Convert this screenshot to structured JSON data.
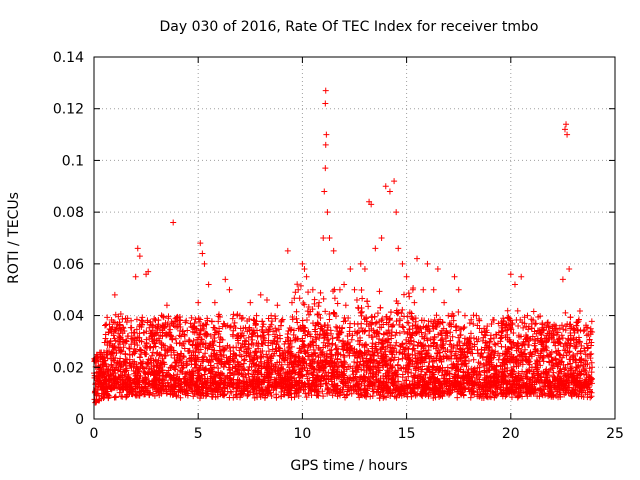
{
  "chart_data": {
    "type": "scatter",
    "title": "Day 030 of 2016, Rate Of TEC Index for receiver tmbo",
    "xlabel": "GPS time / hours",
    "ylabel": "ROTI / TECUs",
    "xlim": [
      0,
      25
    ],
    "ylim": [
      0,
      0.14
    ],
    "x_ticks": [
      0,
      5,
      10,
      15,
      20,
      25
    ],
    "x_tick_labels": [
      "0",
      "5",
      "10",
      "15",
      "20",
      "25"
    ],
    "y_ticks": [
      0,
      0.02,
      0.04,
      0.06,
      0.08,
      0.1,
      0.12,
      0.14
    ],
    "y_tick_labels": [
      "0",
      "0.02",
      "0.04",
      "0.06",
      "0.08",
      "0.1",
      "0.12",
      "0.14"
    ],
    "grid": true,
    "marker": "+",
    "marker_color": "#ff0000",
    "series": [
      {
        "name": "ROTI",
        "description_points": "dense band approx 0.005-0.04 across 0-24h",
        "points": [
          [
            0.1,
            0.012
          ],
          [
            0.3,
            0.02
          ],
          [
            0.5,
            0.016
          ],
          [
            0.8,
            0.03
          ],
          [
            1.0,
            0.048
          ],
          [
            1.2,
            0.035
          ],
          [
            1.5,
            0.025
          ],
          [
            1.8,
            0.02
          ],
          [
            2.0,
            0.055
          ],
          [
            2.1,
            0.066
          ],
          [
            2.2,
            0.063
          ],
          [
            2.5,
            0.056
          ],
          [
            2.6,
            0.057
          ],
          [
            2.8,
            0.03
          ],
          [
            3.0,
            0.02
          ],
          [
            3.3,
            0.018
          ],
          [
            3.5,
            0.044
          ],
          [
            3.8,
            0.076
          ],
          [
            4.0,
            0.025
          ],
          [
            4.3,
            0.02
          ],
          [
            4.6,
            0.03
          ],
          [
            5.0,
            0.045
          ],
          [
            5.1,
            0.068
          ],
          [
            5.2,
            0.064
          ],
          [
            5.3,
            0.06
          ],
          [
            5.5,
            0.052
          ],
          [
            5.8,
            0.045
          ],
          [
            6.0,
            0.035
          ],
          [
            6.3,
            0.054
          ],
          [
            6.5,
            0.05
          ],
          [
            7.0,
            0.04
          ],
          [
            7.3,
            0.03
          ],
          [
            7.5,
            0.045
          ],
          [
            7.8,
            0.04
          ],
          [
            8.0,
            0.048
          ],
          [
            8.3,
            0.046
          ],
          [
            8.5,
            0.04
          ],
          [
            8.8,
            0.044
          ],
          [
            9.0,
            0.038
          ],
          [
            9.3,
            0.065
          ],
          [
            9.5,
            0.045
          ],
          [
            9.8,
            0.05
          ],
          [
            10.0,
            0.06
          ],
          [
            10.1,
            0.058
          ],
          [
            10.2,
            0.055
          ],
          [
            10.5,
            0.05
          ],
          [
            10.8,
            0.045
          ],
          [
            11.0,
            0.07
          ],
          [
            11.05,
            0.088
          ],
          [
            11.1,
            0.097
          ],
          [
            11.12,
            0.106
          ],
          [
            11.15,
            0.11
          ],
          [
            11.1,
            0.122
          ],
          [
            11.12,
            0.127
          ],
          [
            11.2,
            0.08
          ],
          [
            11.3,
            0.07
          ],
          [
            11.5,
            0.065
          ],
          [
            11.8,
            0.05
          ],
          [
            12.0,
            0.052
          ],
          [
            12.3,
            0.058
          ],
          [
            12.5,
            0.05
          ],
          [
            12.8,
            0.06
          ],
          [
            13.0,
            0.058
          ],
          [
            13.2,
            0.084
          ],
          [
            13.3,
            0.083
          ],
          [
            13.5,
            0.066
          ],
          [
            13.8,
            0.07
          ],
          [
            14.0,
            0.09
          ],
          [
            14.2,
            0.088
          ],
          [
            14.4,
            0.092
          ],
          [
            14.5,
            0.08
          ],
          [
            14.6,
            0.066
          ],
          [
            14.8,
            0.06
          ],
          [
            15.0,
            0.055
          ],
          [
            15.3,
            0.05
          ],
          [
            15.5,
            0.062
          ],
          [
            15.8,
            0.05
          ],
          [
            16.0,
            0.06
          ],
          [
            16.3,
            0.05
          ],
          [
            16.5,
            0.058
          ],
          [
            16.8,
            0.045
          ],
          [
            17.0,
            0.04
          ],
          [
            17.3,
            0.055
          ],
          [
            17.5,
            0.05
          ],
          [
            17.8,
            0.04
          ],
          [
            18.0,
            0.03
          ],
          [
            18.5,
            0.035
          ],
          [
            19.0,
            0.03
          ],
          [
            19.5,
            0.03
          ],
          [
            20.0,
            0.056
          ],
          [
            20.2,
            0.052
          ],
          [
            20.5,
            0.055
          ],
          [
            20.8,
            0.04
          ],
          [
            21.0,
            0.035
          ],
          [
            21.5,
            0.03
          ],
          [
            22.0,
            0.035
          ],
          [
            22.5,
            0.054
          ],
          [
            22.6,
            0.112
          ],
          [
            22.65,
            0.114
          ],
          [
            22.7,
            0.11
          ],
          [
            22.8,
            0.058
          ],
          [
            23.0,
            0.035
          ],
          [
            23.3,
            0.03
          ],
          [
            23.6,
            0.025
          ],
          [
            23.9,
            0.02
          ]
        ]
      }
    ]
  }
}
